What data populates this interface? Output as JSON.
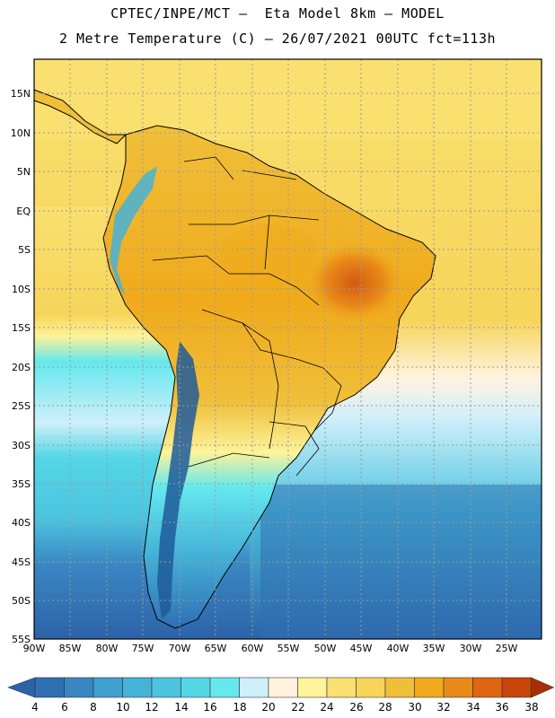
{
  "header": {
    "line1": "CPTEC/INPE/MCT –  Eta Model 8km – MODEL",
    "line2": "2 Metre Temperature (C) – 26/07/2021 00UTC fct=113h"
  },
  "map": {
    "lat_labels": [
      "15N",
      "10N",
      "5N",
      "EQ",
      "5S",
      "10S",
      "15S",
      "20S",
      "25S",
      "30S",
      "35S",
      "40S",
      "45S",
      "50S",
      "55S"
    ],
    "lon_labels": [
      "90W",
      "85W",
      "80W",
      "75W",
      "70W",
      "65W",
      "60W",
      "55W",
      "50W",
      "45W",
      "40W",
      "35W",
      "30W",
      "25W"
    ],
    "colors": {
      "ocean_south": "#2e6fb0",
      "ocean_mid": "#4cc2dc",
      "ocean_tropical": "#f7d45a",
      "land_north": "#f0a828",
      "hot_core": "#d45a12",
      "andes": "#1f5a9a",
      "grid": "#9a9a9a"
    }
  },
  "colorbar": {
    "labels": [
      "4",
      "6",
      "8",
      "10",
      "12",
      "14",
      "16",
      "18",
      "20",
      "22",
      "24",
      "26",
      "28",
      "30",
      "32",
      "34",
      "36",
      "38"
    ],
    "colors": [
      "#2c63a8",
      "#2f6fb3",
      "#3a86c2",
      "#3f9fcf",
      "#45b3d8",
      "#4cc4df",
      "#55d6e6",
      "#64e8ee",
      "#cfeffa",
      "#fff3df",
      "#fdf39a",
      "#f9e070",
      "#f7d45a",
      "#f0bf3a",
      "#f0aa1c",
      "#e88a18",
      "#df6510",
      "#c84408",
      "#a83004"
    ]
  }
}
